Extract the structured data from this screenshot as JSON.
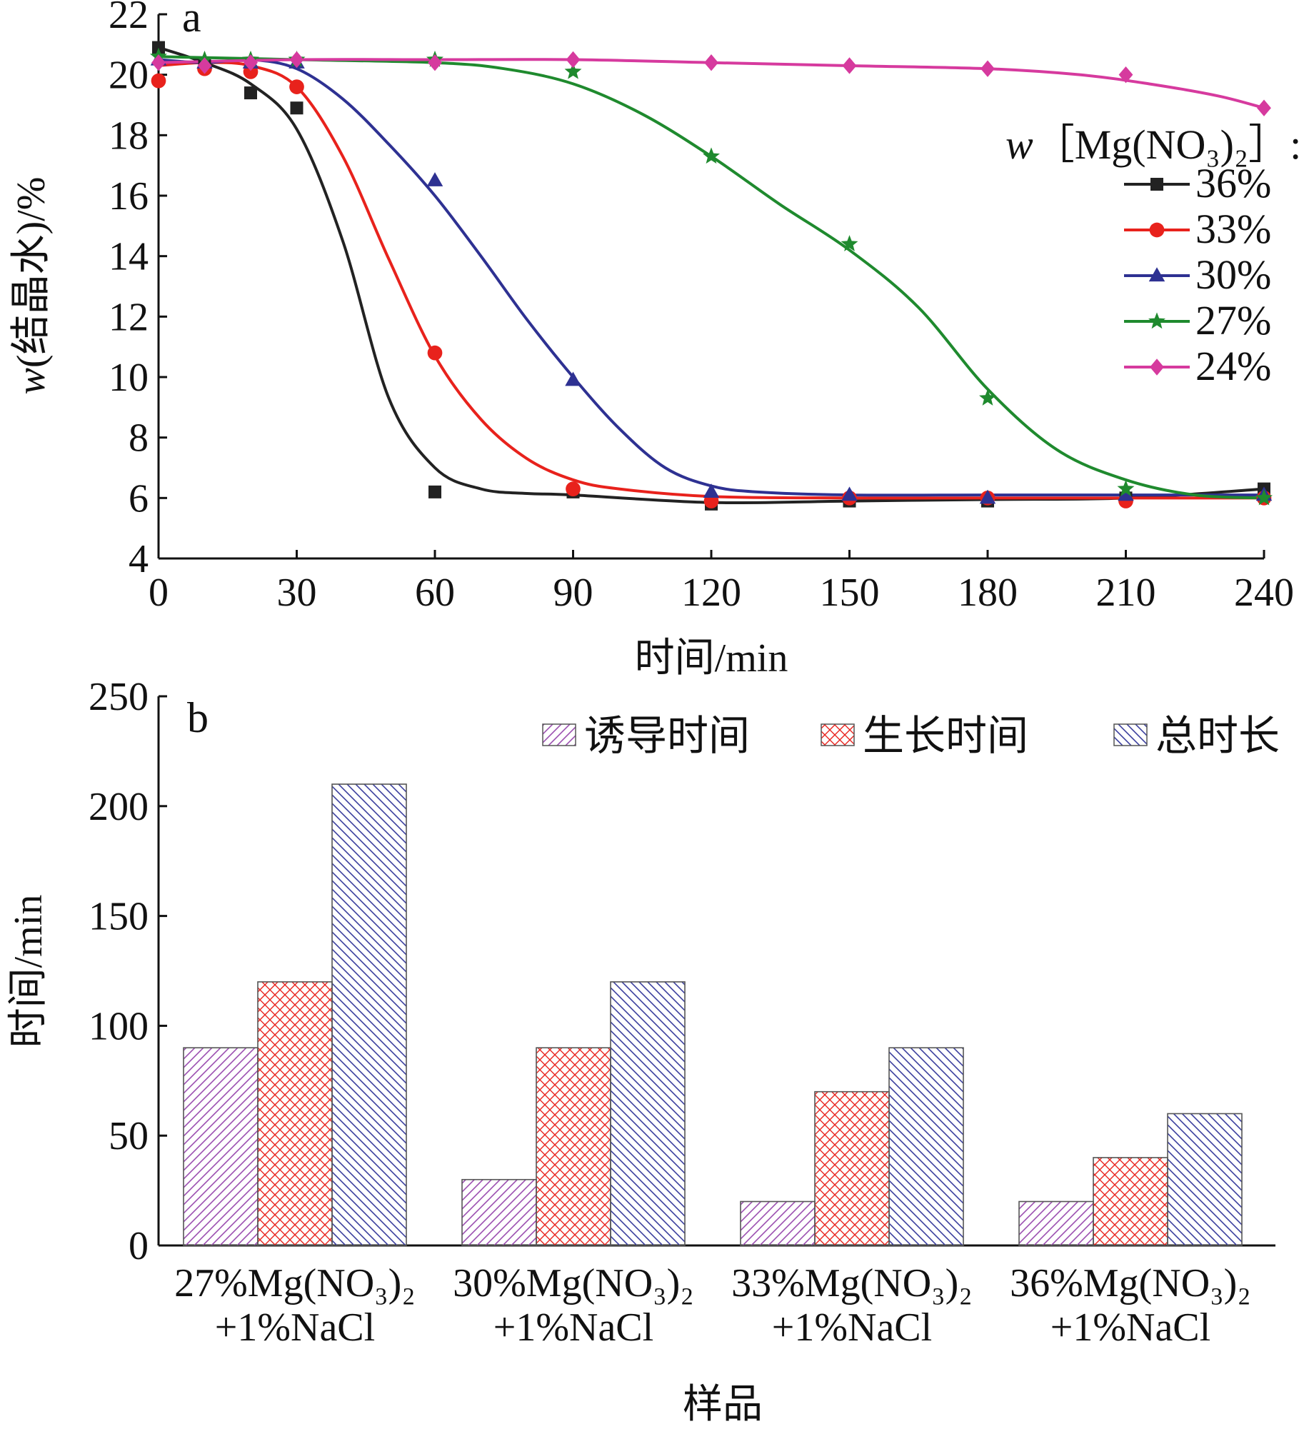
{
  "chart_data": [
    {
      "panel_label": "a",
      "type": "line",
      "xlabel": "时间/min",
      "ylabel_var": "w",
      "ylabel": "(结晶水)/%",
      "xlim": [
        0,
        240
      ],
      "ylim": [
        4,
        22
      ],
      "xticks": [
        0,
        30,
        60,
        90,
        120,
        150,
        180,
        210,
        240
      ],
      "yticks": [
        4,
        6,
        8,
        10,
        12,
        14,
        16,
        18,
        20,
        22
      ],
      "legend": {
        "title_var": "w",
        "title": "［Mg(NO₃)₂］:",
        "placement": "right"
      },
      "series": [
        {
          "name": "36%",
          "color": "#222222",
          "marker": "square",
          "x": [
            0,
            10,
            20,
            30,
            60,
            90,
            120,
            150,
            180,
            210,
            240
          ],
          "y": [
            20.9,
            20.3,
            19.4,
            18.9,
            6.2,
            6.2,
            5.8,
            5.9,
            5.9,
            6.0,
            6.3
          ],
          "curve": [
            [
              0,
              20.9
            ],
            [
              10,
              20.4
            ],
            [
              20,
              19.7
            ],
            [
              30,
              18.2
            ],
            [
              40,
              14.5
            ],
            [
              50,
              9.3
            ],
            [
              60,
              7.0
            ],
            [
              70,
              6.3
            ],
            [
              80,
              6.15
            ],
            [
              90,
              6.1
            ],
            [
              120,
              5.85
            ],
            [
              150,
              5.9
            ],
            [
              180,
              5.95
            ],
            [
              210,
              6.0
            ],
            [
              240,
              6.3
            ]
          ]
        },
        {
          "name": "33%",
          "color": "#e8221c",
          "marker": "circle",
          "x": [
            0,
            10,
            20,
            30,
            60,
            90,
            120,
            150,
            180,
            210,
            240
          ],
          "y": [
            19.8,
            20.2,
            20.1,
            19.6,
            10.8,
            6.3,
            5.9,
            6.0,
            6.0,
            5.9,
            6.0
          ],
          "curve": [
            [
              0,
              20.3
            ],
            [
              10,
              20.4
            ],
            [
              20,
              20.3
            ],
            [
              30,
              19.6
            ],
            [
              40,
              17.3
            ],
            [
              50,
              13.9
            ],
            [
              60,
              10.7
            ],
            [
              70,
              8.6
            ],
            [
              80,
              7.3
            ],
            [
              90,
              6.6
            ],
            [
              100,
              6.3
            ],
            [
              120,
              6.05
            ],
            [
              150,
              6.0
            ],
            [
              180,
              6.0
            ],
            [
              210,
              6.0
            ],
            [
              240,
              6.0
            ]
          ]
        },
        {
          "name": "30%",
          "color": "#2e3192",
          "marker": "triangle",
          "x": [
            0,
            10,
            20,
            30,
            60,
            90,
            120,
            150,
            180,
            210,
            240
          ],
          "y": [
            20.5,
            20.4,
            20.4,
            20.4,
            16.5,
            9.9,
            6.2,
            6.1,
            6.0,
            6.1,
            6.1
          ],
          "curve": [
            [
              0,
              20.5
            ],
            [
              10,
              20.4
            ],
            [
              20,
              20.5
            ],
            [
              30,
              20.2
            ],
            [
              40,
              19.2
            ],
            [
              50,
              17.7
            ],
            [
              60,
              16.0
            ],
            [
              70,
              14.0
            ],
            [
              80,
              11.9
            ],
            [
              90,
              10.0
            ],
            [
              100,
              8.3
            ],
            [
              110,
              7.0
            ],
            [
              120,
              6.4
            ],
            [
              130,
              6.2
            ],
            [
              150,
              6.1
            ],
            [
              180,
              6.1
            ],
            [
              210,
              6.1
            ],
            [
              240,
              6.1
            ]
          ]
        },
        {
          "name": "27%",
          "color": "#1f8a2e",
          "marker": "star",
          "x": [
            0,
            10,
            20,
            30,
            60,
            90,
            120,
            150,
            180,
            210,
            240
          ],
          "y": [
            20.6,
            20.5,
            20.5,
            20.5,
            20.5,
            20.1,
            17.3,
            14.4,
            9.3,
            6.3,
            6.0
          ],
          "curve": [
            [
              0,
              20.6
            ],
            [
              30,
              20.5
            ],
            [
              60,
              20.4
            ],
            [
              75,
              20.2
            ],
            [
              90,
              19.7
            ],
            [
              105,
              18.7
            ],
            [
              120,
              17.3
            ],
            [
              135,
              15.7
            ],
            [
              150,
              14.2
            ],
            [
              165,
              12.3
            ],
            [
              180,
              9.6
            ],
            [
              195,
              7.6
            ],
            [
              210,
              6.6
            ],
            [
              225,
              6.1
            ],
            [
              240,
              6.0
            ]
          ]
        },
        {
          "name": "24%",
          "color": "#d63a9e",
          "marker": "diamond",
          "x": [
            0,
            10,
            20,
            30,
            60,
            90,
            120,
            150,
            180,
            210,
            240
          ],
          "y": [
            20.4,
            20.3,
            20.4,
            20.5,
            20.4,
            20.5,
            20.4,
            20.3,
            20.2,
            20.0,
            18.9
          ],
          "curve": [
            [
              0,
              20.4
            ],
            [
              30,
              20.5
            ],
            [
              60,
              20.5
            ],
            [
              90,
              20.5
            ],
            [
              120,
              20.4
            ],
            [
              150,
              20.3
            ],
            [
              180,
              20.2
            ],
            [
              200,
              20.0
            ],
            [
              215,
              19.7
            ],
            [
              230,
              19.3
            ],
            [
              240,
              18.9
            ]
          ]
        }
      ]
    },
    {
      "panel_label": "b",
      "type": "bar",
      "xlabel": "样品",
      "ylabel": "时间/min",
      "ylim": [
        0,
        250
      ],
      "yticks": [
        0,
        50,
        100,
        150,
        200,
        250
      ],
      "legend": {
        "placement": "top-right"
      },
      "categories": [
        [
          "27%Mg(NO₃)₂",
          "+1%NaCl"
        ],
        [
          "30%Mg(NO₃)₂",
          "+1%NaCl"
        ],
        [
          "33%Mg(NO₃)₂",
          "+1%NaCl"
        ],
        [
          "36%Mg(NO₃)₂",
          "+1%NaCl"
        ]
      ],
      "series": [
        {
          "name": "诱导时间",
          "color": "#9b4fb0",
          "pattern": "diagonal-up",
          "values": [
            90,
            30,
            20,
            20
          ]
        },
        {
          "name": "生长时间",
          "color": "#e8221c",
          "pattern": "crosshatch",
          "values": [
            120,
            90,
            70,
            40
          ]
        },
        {
          "name": "总时长",
          "color": "#3b3f9e",
          "pattern": "diagonal-down",
          "values": [
            210,
            120,
            90,
            60
          ]
        }
      ]
    }
  ]
}
